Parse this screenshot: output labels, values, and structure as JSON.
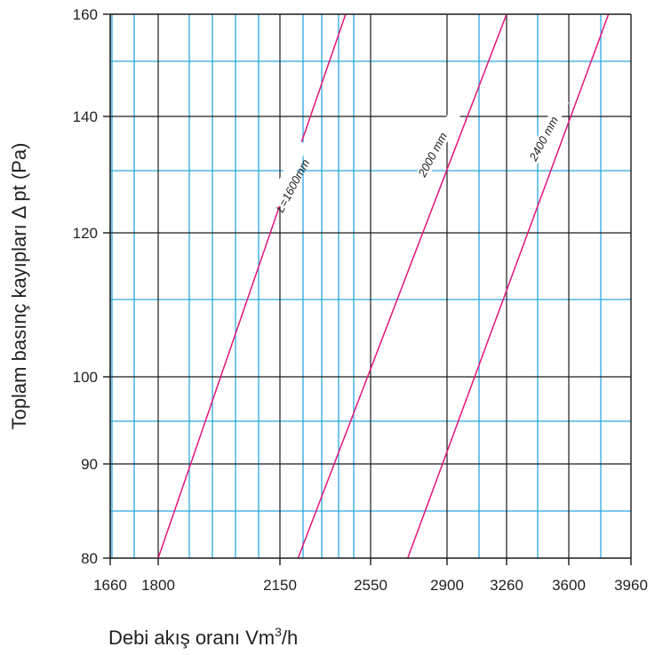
{
  "chart_data": {
    "type": "line",
    "title": "",
    "xlabel": "Debi akış oranı Vm",
    "xlabel_superscript": "3",
    "xlabel_suffix": "/h",
    "ylabel": "Toplam basınç kayıpları Δ pt (Pa)",
    "x_ticks": [
      "1660",
      "1800",
      "2150",
      "2550",
      "2900",
      "3260",
      "3600",
      "3960"
    ],
    "y_ticks": [
      "80",
      "90",
      "100",
      "120",
      "140",
      "160"
    ],
    "series": [
      {
        "name": "L=1600mm",
        "x": [
          1800,
          2440
        ],
        "y": [
          80,
          160
        ]
      },
      {
        "name": "2000 mm",
        "x": [
          2230,
          3260
        ],
        "y": [
          80,
          160
        ]
      },
      {
        "name": "2400 mm",
        "x": [
          2720,
          3830
        ],
        "y": [
          80,
          160
        ]
      }
    ],
    "grid": true,
    "colors": {
      "series": "#e0157a",
      "major_grid": "#1a1a1a",
      "minor_grid": "#29a8e0",
      "text": "#222222"
    }
  }
}
